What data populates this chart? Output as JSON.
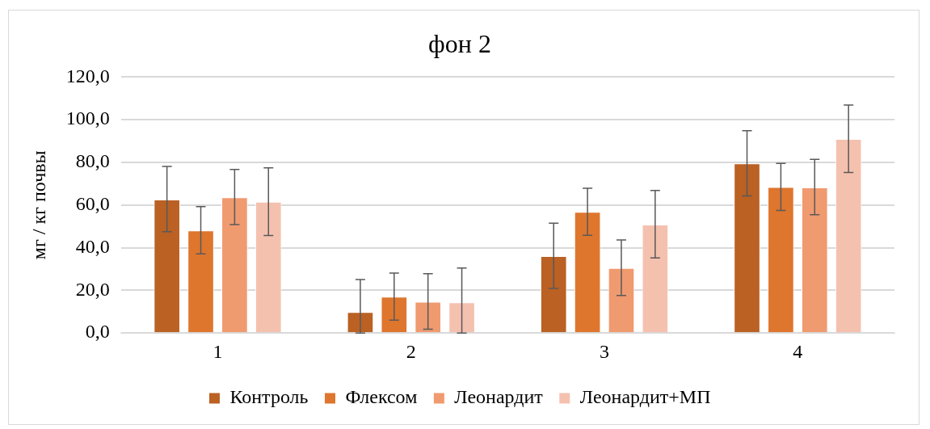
{
  "chart_data": {
    "type": "bar",
    "title": "фон 2",
    "ylabel": "мг / кг почвы",
    "categories": [
      "1",
      "2",
      "3",
      "4"
    ],
    "series": [
      {
        "name": "Контроль",
        "color": "#ba6123",
        "values": [
          62.6,
          9.8,
          36.1,
          79.5
        ],
        "errors": [
          [
            47.5,
            78.1
          ],
          [
            0,
            25.1
          ],
          [
            20.9,
            51.5
          ],
          [
            64.3,
            94.9
          ]
        ]
      },
      {
        "name": "Флексом",
        "color": "#de762e",
        "values": [
          48.1,
          17.0,
          56.8,
          68.4
        ],
        "errors": [
          [
            37.1,
            59.3
          ],
          [
            6.0,
            28.1
          ],
          [
            45.8,
            67.9
          ],
          [
            57.5,
            79.5
          ]
        ]
      },
      {
        "name": "Леонардит",
        "color": "#f09a70",
        "values": [
          63.6,
          14.7,
          30.5,
          68.3
        ],
        "errors": [
          [
            50.8,
            76.7
          ],
          [
            1.8,
            27.8
          ],
          [
            17.6,
            43.6
          ],
          [
            55.5,
            81.4
          ]
        ]
      },
      {
        "name": "Леонардит+МП",
        "color": "#f5c1af",
        "values": [
          61.5,
          14.4,
          50.8,
          91.0
        ],
        "errors": [
          [
            45.7,
            77.4
          ],
          [
            0,
            30.5
          ],
          [
            35.2,
            66.8
          ],
          [
            75.3,
            106.9
          ]
        ]
      }
    ],
    "ylim": [
      0,
      120
    ],
    "yticks": [
      {
        "value": 0,
        "label": "0,0"
      },
      {
        "value": 20,
        "label": "20,0"
      },
      {
        "value": 40,
        "label": "40,0"
      },
      {
        "value": 60,
        "label": "60,0"
      },
      {
        "value": 80,
        "label": "80,0"
      },
      {
        "value": 100,
        "label": "100,0"
      },
      {
        "value": 120,
        "label": "120,0"
      }
    ],
    "grid": "y",
    "legend": "bottom"
  }
}
